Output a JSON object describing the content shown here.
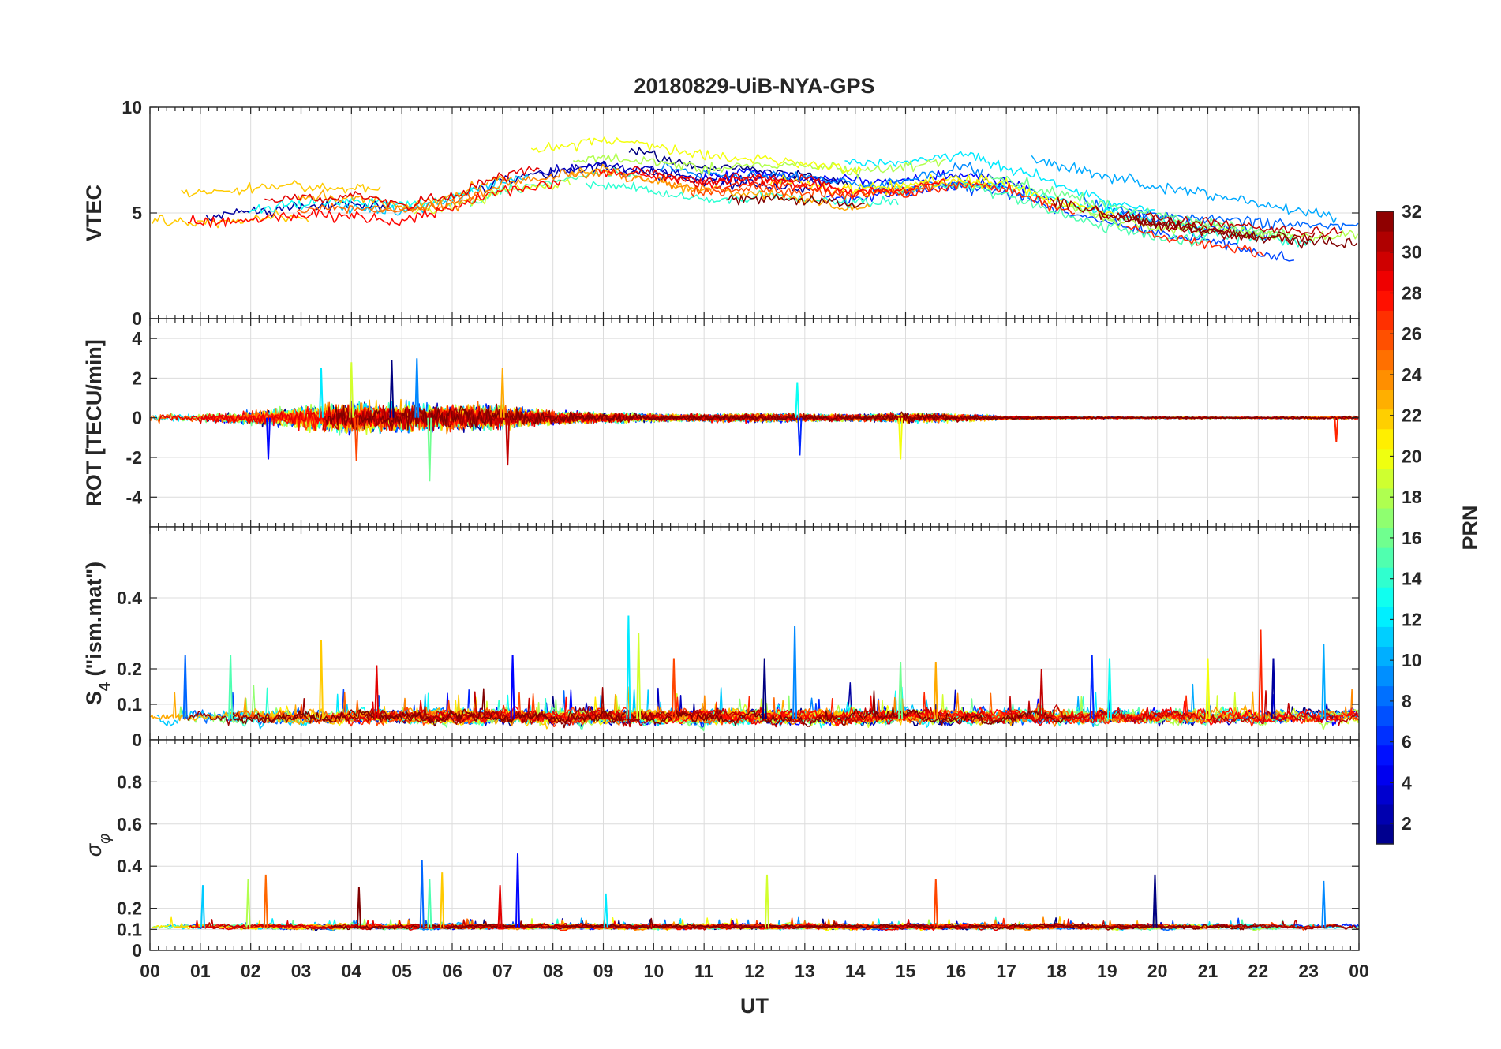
{
  "chart_data": {
    "type": "line",
    "title": "20180829-UiB-NYA-GPS",
    "xlabel": "UT",
    "x_ticks": [
      "00",
      "01",
      "02",
      "03",
      "04",
      "05",
      "06",
      "07",
      "08",
      "09",
      "10",
      "11",
      "12",
      "13",
      "14",
      "15",
      "16",
      "17",
      "18",
      "19",
      "20",
      "21",
      "22",
      "23",
      "00"
    ],
    "xlim": [
      0,
      24
    ],
    "panels": [
      {
        "name": "vtec",
        "ylabel": "VTEC",
        "ylim": [
          0,
          10
        ],
        "yticks": [
          "0",
          "5",
          "10"
        ],
        "ytick_values": [
          0,
          5,
          10
        ],
        "baseline_profile": {
          "x": [
            0,
            1,
            2,
            3,
            4,
            5,
            6,
            7,
            8,
            9,
            10,
            11,
            12,
            13,
            14,
            15,
            16,
            17,
            18,
            19,
            20,
            21,
            22,
            23,
            24
          ],
          "y": [
            5.0,
            5.0,
            5.1,
            5.3,
            5.4,
            5.2,
            5.6,
            6.6,
            6.9,
            7.2,
            6.9,
            6.5,
            6.6,
            6.4,
            6.1,
            6.2,
            6.6,
            6.3,
            5.6,
            5.0,
            4.6,
            4.3,
            4.0,
            3.9,
            4.0
          ]
        },
        "spread": 1.3,
        "noise": 0.25
      },
      {
        "name": "rot",
        "ylabel": "ROT [TECU/min]",
        "ylim": [
          -5.5,
          5
        ],
        "yticks": [
          "-4",
          "-2",
          "0",
          "2",
          "4"
        ],
        "ytick_values": [
          -4,
          -2,
          0,
          2,
          4
        ],
        "activity_profile": {
          "x": [
            0,
            1,
            2,
            3,
            4,
            5,
            6,
            7,
            8,
            9,
            10,
            11,
            12,
            13,
            14,
            15,
            16,
            17,
            18,
            19,
            20,
            21,
            22,
            23,
            24
          ],
          "amp": [
            0.3,
            0.35,
            0.5,
            0.9,
            1.2,
            1.1,
            1.0,
            0.9,
            0.5,
            0.4,
            0.3,
            0.3,
            0.35,
            0.3,
            0.25,
            0.4,
            0.3,
            0.15,
            0.1,
            0.08,
            0.08,
            0.08,
            0.08,
            0.1,
            0.15
          ]
        },
        "spikes": [
          {
            "x": 2.35,
            "y": -2.1
          },
          {
            "x": 3.4,
            "y": 2.5
          },
          {
            "x": 4.0,
            "y": 2.8
          },
          {
            "x": 4.1,
            "y": -2.2
          },
          {
            "x": 4.8,
            "y": 2.9
          },
          {
            "x": 5.3,
            "y": 3.0
          },
          {
            "x": 5.55,
            "y": -3.2
          },
          {
            "x": 7.0,
            "y": 2.5
          },
          {
            "x": 7.1,
            "y": -2.4
          },
          {
            "x": 12.9,
            "y": -1.9
          },
          {
            "x": 12.85,
            "y": 1.8
          },
          {
            "x": 14.9,
            "y": -2.1
          },
          {
            "x": 23.55,
            "y": -1.2
          }
        ]
      },
      {
        "name": "s4",
        "ylabel": "S4 (\"ism.mat\")",
        "ylabel_main": "S",
        "ylabel_sub": "4",
        "ylabel_rest": " (\"ism.mat\")",
        "ylim": [
          0,
          0.6
        ],
        "yticks": [
          "0",
          "0.1",
          "0.2",
          "0.4"
        ],
        "ytick_values": [
          0,
          0.1,
          0.2,
          0.4
        ],
        "base_level": 0.06,
        "noise": 0.02,
        "spikes": [
          {
            "x": 0.7,
            "y": 0.24
          },
          {
            "x": 1.6,
            "y": 0.24
          },
          {
            "x": 3.4,
            "y": 0.28
          },
          {
            "x": 4.5,
            "y": 0.21
          },
          {
            "x": 7.2,
            "y": 0.24
          },
          {
            "x": 9.5,
            "y": 0.35
          },
          {
            "x": 9.7,
            "y": 0.3
          },
          {
            "x": 10.4,
            "y": 0.23
          },
          {
            "x": 12.2,
            "y": 0.23
          },
          {
            "x": 12.8,
            "y": 0.32
          },
          {
            "x": 14.9,
            "y": 0.22
          },
          {
            "x": 15.6,
            "y": 0.22
          },
          {
            "x": 17.7,
            "y": 0.2
          },
          {
            "x": 18.7,
            "y": 0.24
          },
          {
            "x": 19.05,
            "y": 0.23
          },
          {
            "x": 21.0,
            "y": 0.23
          },
          {
            "x": 22.05,
            "y": 0.31
          },
          {
            "x": 22.3,
            "y": 0.23
          },
          {
            "x": 23.3,
            "y": 0.27
          }
        ]
      },
      {
        "name": "sigma-phi",
        "ylabel": "σφ",
        "ylabel_main": "σ",
        "ylabel_sub": "φ",
        "ylim": [
          0,
          1
        ],
        "yticks": [
          "0",
          "0.1",
          "0.2",
          "0.4",
          "0.6",
          "0.8"
        ],
        "ytick_values": [
          0,
          0.1,
          0.2,
          0.4,
          0.6,
          0.8
        ],
        "base_level": 0.11,
        "noise": 0.012,
        "spikes": [
          {
            "x": 1.05,
            "y": 0.31
          },
          {
            "x": 1.95,
            "y": 0.34
          },
          {
            "x": 2.3,
            "y": 0.36
          },
          {
            "x": 4.15,
            "y": 0.3
          },
          {
            "x": 5.4,
            "y": 0.43
          },
          {
            "x": 5.55,
            "y": 0.34
          },
          {
            "x": 5.8,
            "y": 0.37
          },
          {
            "x": 6.95,
            "y": 0.31
          },
          {
            "x": 7.3,
            "y": 0.46
          },
          {
            "x": 9.05,
            "y": 0.27
          },
          {
            "x": 12.25,
            "y": 0.36
          },
          {
            "x": 15.6,
            "y": 0.34
          },
          {
            "x": 19.95,
            "y": 0.36
          },
          {
            "x": 23.3,
            "y": 0.33
          }
        ]
      }
    ],
    "colorbar": {
      "label": "PRN",
      "clim": [
        1,
        32
      ],
      "ticks": [
        "2",
        "4",
        "6",
        "8",
        "10",
        "12",
        "14",
        "16",
        "18",
        "20",
        "22",
        "24",
        "26",
        "28",
        "30",
        "32"
      ],
      "tick_values": [
        2,
        4,
        6,
        8,
        10,
        12,
        14,
        16,
        18,
        20,
        22,
        24,
        26,
        28,
        30,
        32
      ],
      "colormap": "jet",
      "levels": 32
    },
    "prn_series": [
      1,
      2,
      3,
      5,
      6,
      7,
      8,
      9,
      10,
      11,
      12,
      13,
      14,
      15,
      16,
      17,
      18,
      19,
      20,
      21,
      22,
      23,
      24,
      25,
      26,
      27,
      28,
      29,
      30,
      31,
      32
    ],
    "grid": true
  }
}
